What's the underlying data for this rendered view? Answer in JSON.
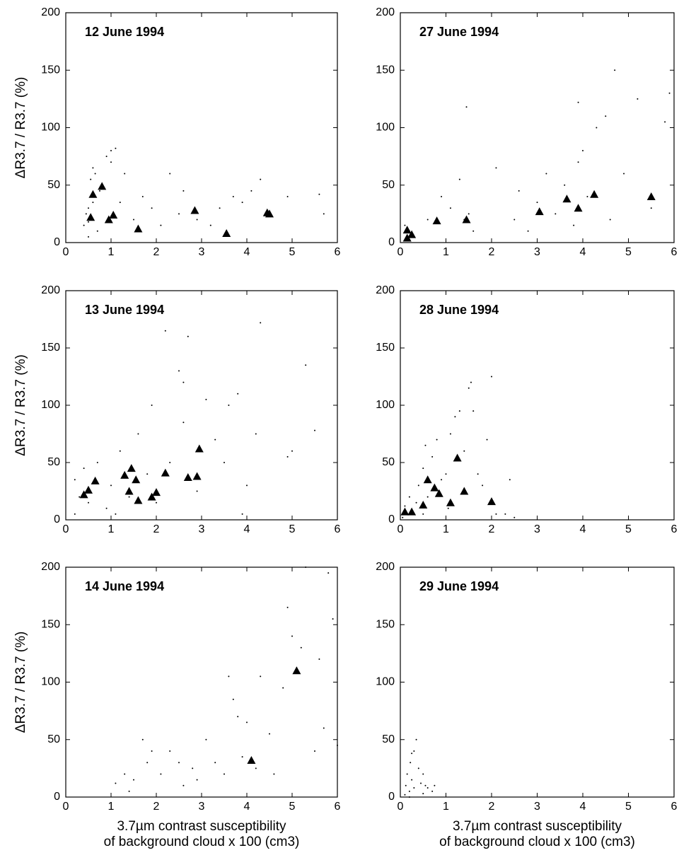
{
  "chart_data": [
    {
      "type": "scatter",
      "title": "12 June 1994",
      "ylabel": "ΔR3.7 / R3.7 (%)",
      "xlim": [
        0,
        6
      ],
      "ylim": [
        0,
        200
      ],
      "xticks": [
        0,
        1,
        2,
        3,
        4,
        5,
        6
      ],
      "yticks": [
        0,
        50,
        100,
        150,
        200
      ],
      "series": [
        {
          "marker": "dot",
          "color": "#000000",
          "x": [
            0.4,
            0.45,
            0.5,
            0.5,
            0.55,
            0.6,
            0.65,
            0.7,
            0.75,
            0.9,
            1.0,
            1.2,
            1.3,
            1.5,
            1.7,
            1.9,
            2.1,
            2.3,
            2.5,
            2.6,
            2.9,
            3.2,
            3.4,
            3.7,
            3.9,
            4.1,
            4.3,
            4.9,
            5.6,
            5.7,
            1.0,
            1.1,
            0.6,
            0.5
          ],
          "y": [
            15,
            25,
            18,
            30,
            55,
            35,
            60,
            10,
            45,
            75,
            80,
            35,
            60,
            20,
            40,
            30,
            15,
            60,
            25,
            45,
            20,
            15,
            30,
            40,
            35,
            45,
            55,
            40,
            42,
            25,
            70,
            82,
            65,
            5
          ]
        },
        {
          "marker": "triangle",
          "color": "#000000",
          "x": [
            0.55,
            0.6,
            0.8,
            0.95,
            1.05,
            1.6,
            2.85,
            3.55,
            4.45,
            4.5
          ],
          "y": [
            22,
            42,
            49,
            20,
            24,
            12,
            28,
            8,
            26,
            25
          ]
        }
      ]
    },
    {
      "type": "scatter",
      "title": "27 June 1994",
      "xlim": [
        0,
        6
      ],
      "ylim": [
        0,
        200
      ],
      "xticks": [
        0,
        1,
        2,
        3,
        4,
        5,
        6
      ],
      "yticks": [
        0,
        50,
        100,
        150,
        200
      ],
      "series": [
        {
          "marker": "dot",
          "color": "#000000",
          "x": [
            0.1,
            0.2,
            0.3,
            0.6,
            0.9,
            1.1,
            1.3,
            1.45,
            1.5,
            1.6,
            2.1,
            2.5,
            2.6,
            2.8,
            3.0,
            3.2,
            3.4,
            3.6,
            3.8,
            3.9,
            4.0,
            4.1,
            4.3,
            4.5,
            4.7,
            4.9,
            5.2,
            5.5,
            5.8,
            5.9,
            1.4,
            4.6,
            3.9
          ],
          "y": [
            15,
            10,
            5,
            20,
            40,
            30,
            55,
            118,
            25,
            10,
            65,
            20,
            45,
            10,
            35,
            60,
            25,
            50,
            15,
            70,
            80,
            40,
            100,
            110,
            150,
            60,
            125,
            30,
            105,
            130,
            20,
            20,
            122
          ]
        },
        {
          "marker": "triangle",
          "color": "#000000",
          "x": [
            0.15,
            0.15,
            0.25,
            0.8,
            1.45,
            3.05,
            3.65,
            3.9,
            4.25,
            5.5
          ],
          "y": [
            11,
            4,
            7,
            19,
            20,
            27,
            38,
            30,
            42,
            40
          ]
        }
      ]
    },
    {
      "type": "scatter",
      "title": "13 June 1994",
      "ylabel": "ΔR3.7 / R3.7 (%)",
      "xlim": [
        0,
        6
      ],
      "ylim": [
        0,
        200
      ],
      "xticks": [
        0,
        1,
        2,
        3,
        4,
        5,
        6
      ],
      "yticks": [
        0,
        50,
        100,
        150,
        200
      ],
      "series": [
        {
          "marker": "dot",
          "color": "#000000",
          "x": [
            0.2,
            0.2,
            0.3,
            0.4,
            0.5,
            0.7,
            0.9,
            1.0,
            1.2,
            1.4,
            1.6,
            1.8,
            1.9,
            2.0,
            2.2,
            2.3,
            2.5,
            2.6,
            2.7,
            2.9,
            3.1,
            3.3,
            3.5,
            3.6,
            3.8,
            4.0,
            4.2,
            4.3,
            4.9,
            5.0,
            5.3,
            5.5,
            2.6,
            3.9,
            1.1
          ],
          "y": [
            5,
            35,
            20,
            45,
            15,
            50,
            10,
            30,
            60,
            20,
            75,
            40,
            100,
            15,
            165,
            50,
            130,
            85,
            160,
            25,
            105,
            70,
            50,
            100,
            110,
            30,
            75,
            172,
            55,
            60,
            135,
            78,
            120,
            5,
            5
          ]
        },
        {
          "marker": "triangle",
          "color": "#000000",
          "x": [
            0.4,
            0.5,
            0.65,
            1.3,
            1.45,
            1.55,
            1.4,
            1.6,
            1.9,
            2.0,
            2.2,
            2.7,
            2.9,
            2.95
          ],
          "y": [
            22,
            26,
            34,
            39,
            45,
            35,
            25,
            17,
            20,
            24,
            41,
            37,
            38,
            62
          ]
        }
      ]
    },
    {
      "type": "scatter",
      "title": "28 June 1994",
      "xlim": [
        0,
        6
      ],
      "ylim": [
        0,
        200
      ],
      "xticks": [
        0,
        1,
        2,
        3,
        4,
        5,
        6
      ],
      "yticks": [
        0,
        50,
        100,
        150,
        200
      ],
      "series": [
        {
          "marker": "dot",
          "color": "#000000",
          "x": [
            0.05,
            0.1,
            0.2,
            0.3,
            0.4,
            0.5,
            0.55,
            0.6,
            0.7,
            0.8,
            0.9,
            1.0,
            1.05,
            1.1,
            1.2,
            1.3,
            1.4,
            1.5,
            1.6,
            1.7,
            1.8,
            1.9,
            2.0,
            2.1,
            2.3,
            2.4,
            2.5,
            0.5,
            0.35,
            1.55
          ],
          "y": [
            2,
            12,
            20,
            5,
            30,
            45,
            65,
            20,
            55,
            70,
            35,
            40,
            10,
            75,
            90,
            95,
            60,
            115,
            95,
            40,
            30,
            70,
            125,
            5,
            5,
            35,
            2,
            5,
            15,
            120
          ]
        },
        {
          "marker": "triangle",
          "color": "#000000",
          "x": [
            0.1,
            0.25,
            0.5,
            0.6,
            0.75,
            0.85,
            1.1,
            1.25,
            1.4,
            2.0
          ],
          "y": [
            7,
            7,
            13,
            35,
            28,
            23,
            15,
            54,
            25,
            16
          ]
        }
      ]
    },
    {
      "type": "scatter",
      "title": "14 June 1994",
      "ylabel": "ΔR3.7 / R3.7 (%)",
      "xlabel": [
        "3.7µm contrast susceptibility",
        "of background cloud  x 100 (cm3)"
      ],
      "xlim": [
        0,
        6
      ],
      "ylim": [
        0,
        200
      ],
      "xticks": [
        0,
        1,
        2,
        3,
        4,
        5,
        6
      ],
      "yticks": [
        0,
        50,
        100,
        150,
        200
      ],
      "series": [
        {
          "marker": "dot",
          "color": "#000000",
          "x": [
            1.1,
            1.3,
            1.4,
            1.5,
            1.7,
            1.8,
            1.9,
            2.1,
            2.3,
            2.5,
            2.6,
            2.8,
            2.9,
            3.1,
            3.3,
            3.5,
            3.6,
            3.7,
            3.8,
            3.9,
            4.0,
            4.2,
            4.3,
            4.5,
            4.6,
            4.8,
            4.9,
            5.0,
            5.2,
            5.3,
            5.5,
            5.6,
            5.7,
            5.8,
            5.9,
            6.0
          ],
          "y": [
            12,
            20,
            5,
            15,
            50,
            30,
            40,
            20,
            40,
            30,
            10,
            25,
            15,
            50,
            30,
            20,
            105,
            85,
            70,
            35,
            65,
            25,
            105,
            55,
            20,
            95,
            165,
            140,
            130,
            200,
            40,
            120,
            60,
            195,
            155,
            45
          ]
        },
        {
          "marker": "triangle",
          "color": "#000000",
          "x": [
            4.1,
            5.1
          ],
          "y": [
            32,
            110
          ]
        }
      ]
    },
    {
      "type": "scatter",
      "title": "29 June 1994",
      "xlabel": [
        "3.7µm contrast susceptibility",
        "of background cloud  x 100 (cm3)"
      ],
      "xlim": [
        0,
        6
      ],
      "ylim": [
        0,
        200
      ],
      "xticks": [
        0,
        1,
        2,
        3,
        4,
        5,
        6
      ],
      "yticks": [
        0,
        50,
        100,
        150,
        200
      ],
      "series": [
        {
          "marker": "dot",
          "color": "#000000",
          "x": [
            0.1,
            0.12,
            0.15,
            0.2,
            0.22,
            0.25,
            0.3,
            0.3,
            0.35,
            0.4,
            0.45,
            0.5,
            0.5,
            0.55,
            0.6,
            0.7,
            0.75,
            0.25,
            0.2
          ],
          "y": [
            2,
            10,
            20,
            5,
            30,
            15,
            8,
            40,
            50,
            25,
            12,
            3,
            20,
            10,
            8,
            5,
            10,
            38,
            0
          ]
        }
      ]
    }
  ]
}
